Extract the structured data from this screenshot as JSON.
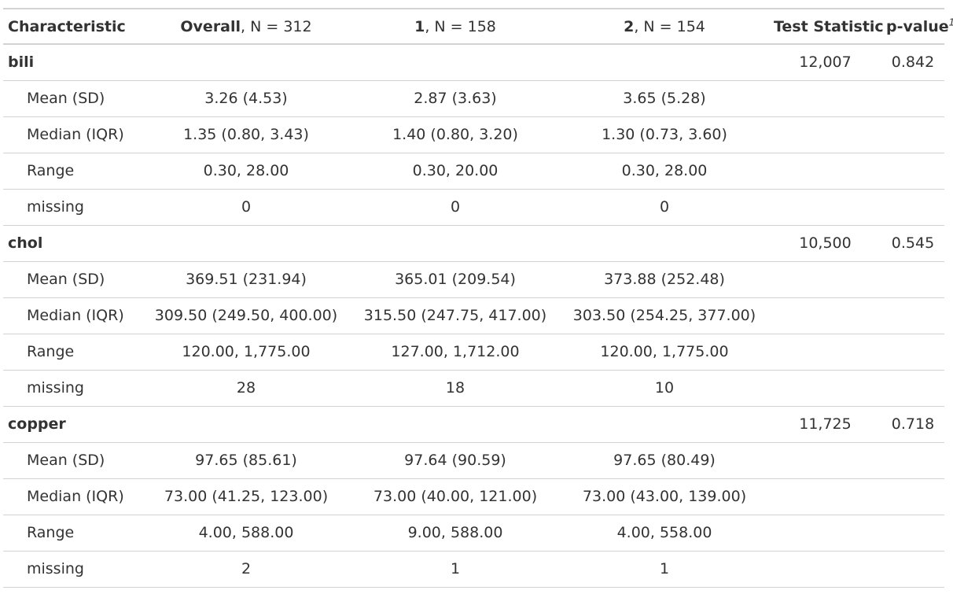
{
  "header": {
    "characteristic": "Characteristic",
    "overall_bold": "Overall",
    "overall_rest": ", N = 312",
    "g1_bold": "1",
    "g1_rest": ", N = 158",
    "g2_bold": "2",
    "g2_rest": ", N = 154",
    "test_statistic": "Test Statistic",
    "pvalue": "p-value",
    "footnote_mark": "1"
  },
  "rows": [
    {
      "type": "variable",
      "label": "bili",
      "overall": "",
      "g1": "",
      "g2": "",
      "stat": "12,007",
      "p": "0.842"
    },
    {
      "type": "stat",
      "label": "Mean (SD)",
      "overall": "3.26 (4.53)",
      "g1": "2.87 (3.63)",
      "g2": "3.65 (5.28)",
      "stat": "",
      "p": ""
    },
    {
      "type": "stat",
      "label": "Median (IQR)",
      "overall": "1.35 (0.80, 3.43)",
      "g1": "1.40 (0.80, 3.20)",
      "g2": "1.30 (0.73, 3.60)",
      "stat": "",
      "p": ""
    },
    {
      "type": "stat",
      "label": "Range",
      "overall": "0.30, 28.00",
      "g1": "0.30, 20.00",
      "g2": "0.30, 28.00",
      "stat": "",
      "p": ""
    },
    {
      "type": "stat",
      "label": "missing",
      "overall": "0",
      "g1": "0",
      "g2": "0",
      "stat": "",
      "p": ""
    },
    {
      "type": "variable",
      "label": "chol",
      "overall": "",
      "g1": "",
      "g2": "",
      "stat": "10,500",
      "p": "0.545"
    },
    {
      "type": "stat",
      "label": "Mean (SD)",
      "overall": "369.51 (231.94)",
      "g1": "365.01 (209.54)",
      "g2": "373.88 (252.48)",
      "stat": "",
      "p": ""
    },
    {
      "type": "stat",
      "label": "Median (IQR)",
      "overall": "309.50 (249.50, 400.00)",
      "g1": "315.50 (247.75, 417.00)",
      "g2": "303.50 (254.25, 377.00)",
      "stat": "",
      "p": ""
    },
    {
      "type": "stat",
      "label": "Range",
      "overall": "120.00, 1,775.00",
      "g1": "127.00, 1,712.00",
      "g2": "120.00, 1,775.00",
      "stat": "",
      "p": ""
    },
    {
      "type": "stat",
      "label": "missing",
      "overall": "28",
      "g1": "18",
      "g2": "10",
      "stat": "",
      "p": ""
    },
    {
      "type": "variable",
      "label": "copper",
      "overall": "",
      "g1": "",
      "g2": "",
      "stat": "11,725",
      "p": "0.718"
    },
    {
      "type": "stat",
      "label": "Mean (SD)",
      "overall": "97.65 (85.61)",
      "g1": "97.64 (90.59)",
      "g2": "97.65 (80.49)",
      "stat": "",
      "p": ""
    },
    {
      "type": "stat",
      "label": "Median (IQR)",
      "overall": "73.00 (41.25, 123.00)",
      "g1": "73.00 (40.00, 121.00)",
      "g2": "73.00 (43.00, 139.00)",
      "stat": "",
      "p": ""
    },
    {
      "type": "stat",
      "label": "Range",
      "overall": "4.00, 588.00",
      "g1": "9.00, 588.00",
      "g2": "4.00, 558.00",
      "stat": "",
      "p": ""
    },
    {
      "type": "stat",
      "label": "missing",
      "overall": "2",
      "g1": "1",
      "g2": "1",
      "stat": "",
      "p": ""
    }
  ]
}
